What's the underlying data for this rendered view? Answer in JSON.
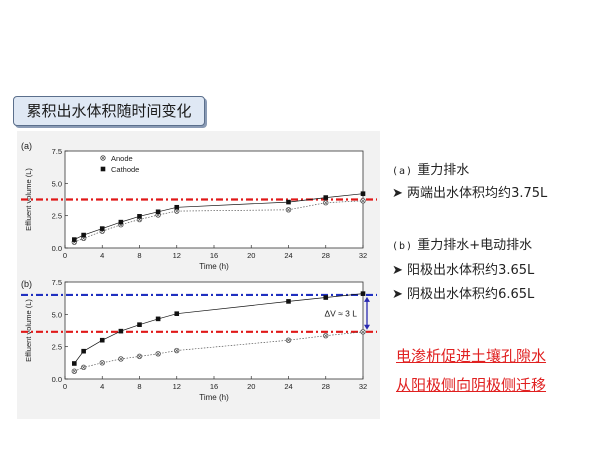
{
  "slide": {
    "title": "累积出水体积随时间变化",
    "note_a": {
      "label": "(a)",
      "heading": "重力排水",
      "items": [
        {
          "text": "两端出水体积均约",
          "value": "3.75L"
        }
      ]
    },
    "note_b": {
      "label": "(b)",
      "heading": "重力排水+电动排水",
      "items": [
        {
          "text": "阳极出水体积约",
          "value": "3.65L"
        },
        {
          "text": "阴极出水体积约",
          "value": "6.65L"
        }
      ]
    },
    "conclusion": [
      "电渗析促进土壤孔隙水",
      "从阳极侧向阴极侧迁移"
    ],
    "bullet_glyph": "➤"
  },
  "colors": {
    "red_reference": "#e01818",
    "blue_reference": "#2030c0",
    "arrow": "#2a2ab0",
    "anode_series": "#555555",
    "cathode_series": "#111111"
  },
  "chart_data": [
    {
      "type": "line",
      "panel_label": "(a)",
      "xlabel": "Time (h)",
      "ylabel": "Effluent volume (L)",
      "xlim": [
        0,
        32
      ],
      "ylim": [
        0,
        7.5
      ],
      "x_ticks": [
        0,
        4,
        8,
        12,
        16,
        20,
        24,
        28,
        32
      ],
      "y_ticks": [
        "0.0",
        "2.5",
        "5.0",
        "7.5"
      ],
      "legend": "top-left",
      "series": [
        {
          "name": "Anode",
          "marker": "circle-x",
          "x": [
            1,
            2,
            4,
            6,
            8,
            10,
            12,
            24,
            28,
            32
          ],
          "y": [
            0.45,
            0.75,
            1.3,
            1.8,
            2.2,
            2.55,
            2.85,
            2.95,
            3.5,
            3.65
          ]
        },
        {
          "name": "Cathode",
          "marker": "square",
          "x": [
            1,
            2,
            4,
            6,
            8,
            10,
            12,
            24,
            28,
            32
          ],
          "y": [
            0.65,
            1.0,
            1.5,
            2.0,
            2.45,
            2.8,
            3.15,
            3.55,
            3.9,
            4.2
          ]
        }
      ],
      "reference_lines": [
        {
          "y": 3.75,
          "color": "red"
        }
      ]
    },
    {
      "type": "line",
      "panel_label": "(b)",
      "xlabel": "Time (h)",
      "ylabel": "Effluent volume (L)",
      "xlim": [
        0,
        32
      ],
      "ylim": [
        0,
        7.5
      ],
      "x_ticks": [
        0,
        4,
        8,
        12,
        16,
        20,
        24,
        28,
        32
      ],
      "y_ticks": [
        "0.0",
        "2.5",
        "5.0",
        "7.5"
      ],
      "series": [
        {
          "name": "Anode",
          "marker": "circle-x",
          "x": [
            1,
            2,
            4,
            6,
            8,
            10,
            12,
            24,
            28,
            32
          ],
          "y": [
            0.6,
            0.9,
            1.25,
            1.55,
            1.75,
            1.95,
            2.2,
            3.0,
            3.35,
            3.65
          ]
        },
        {
          "name": "Cathode",
          "marker": "square",
          "x": [
            1,
            2,
            4,
            6,
            8,
            10,
            12,
            24,
            28,
            32
          ],
          "y": [
            1.2,
            2.15,
            3.0,
            3.7,
            4.2,
            4.65,
            5.05,
            6.0,
            6.3,
            6.6
          ]
        }
      ],
      "reference_lines": [
        {
          "y": 6.5,
          "color": "blue"
        },
        {
          "y": 3.65,
          "color": "red"
        }
      ],
      "annotation": {
        "text": "ΔV ≈ 3 L",
        "x": 32,
        "y_from": 3.65,
        "y_to": 6.5
      }
    }
  ]
}
